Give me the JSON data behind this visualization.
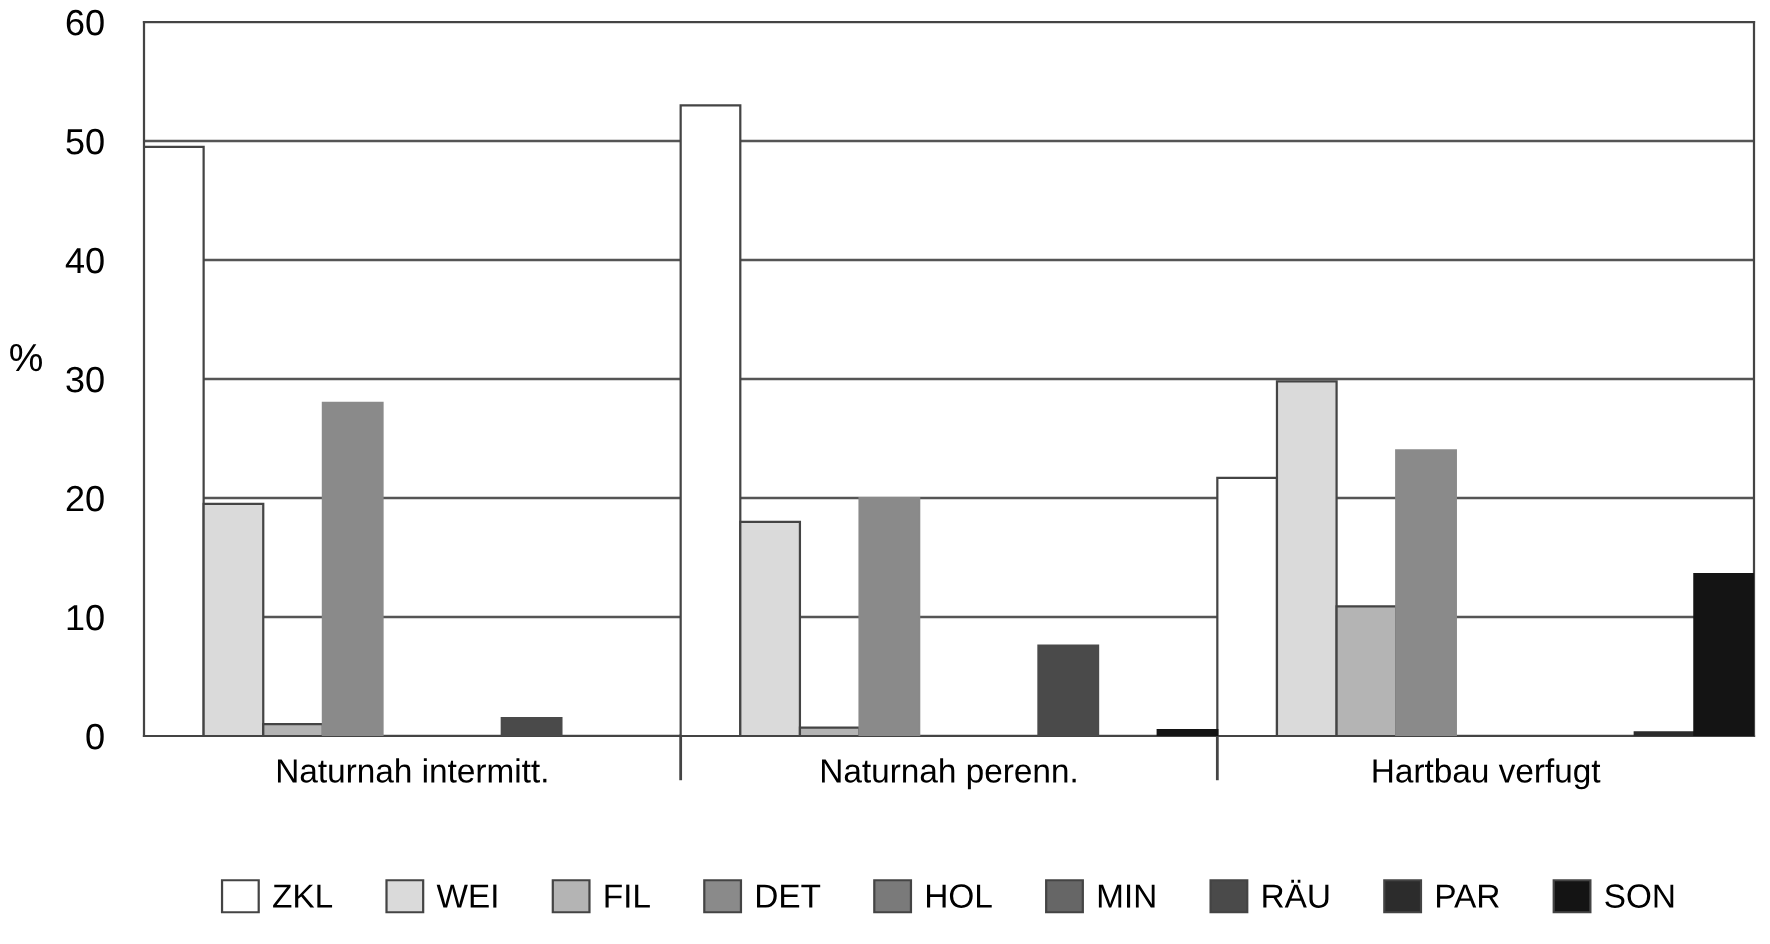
{
  "chart_data": {
    "type": "bar",
    "ylabel": "%",
    "categories": [
      "Naturnah intermitt.",
      "Naturnah perenn.",
      "Hartbau verfugt"
    ],
    "series": [
      {
        "name": "ZKL",
        "color": "#ffffff",
        "values": [
          49.5,
          53,
          21.7
        ]
      },
      {
        "name": "WEI",
        "color": "#dadada",
        "values": [
          19.5,
          18,
          29.8
        ]
      },
      {
        "name": "FIL",
        "color": "#b4b4b4",
        "values": [
          1,
          0.7,
          10.9
        ]
      },
      {
        "name": "DET",
        "color": "#8a8a8a",
        "values": [
          28,
          20,
          24
        ]
      },
      {
        "name": "HOL",
        "color": "#7a7a7a",
        "values": [
          null,
          null,
          null
        ]
      },
      {
        "name": "MIN",
        "color": "#666666",
        "values": [
          null,
          null,
          null
        ]
      },
      {
        "name": "RÄU",
        "color": "#4a4a4a",
        "values": [
          1.5,
          7.6,
          null
        ]
      },
      {
        "name": "PAR",
        "color": "#2c2c2c",
        "values": [
          null,
          null,
          0.3
        ]
      },
      {
        "name": "SON",
        "color": "#141414",
        "values": [
          null,
          0.5,
          13.6
        ]
      }
    ],
    "ylim": [
      0,
      60
    ],
    "yticks": [
      0,
      10,
      20,
      30,
      40,
      50,
      60
    ],
    "grid": "y",
    "legend": "bottom"
  }
}
